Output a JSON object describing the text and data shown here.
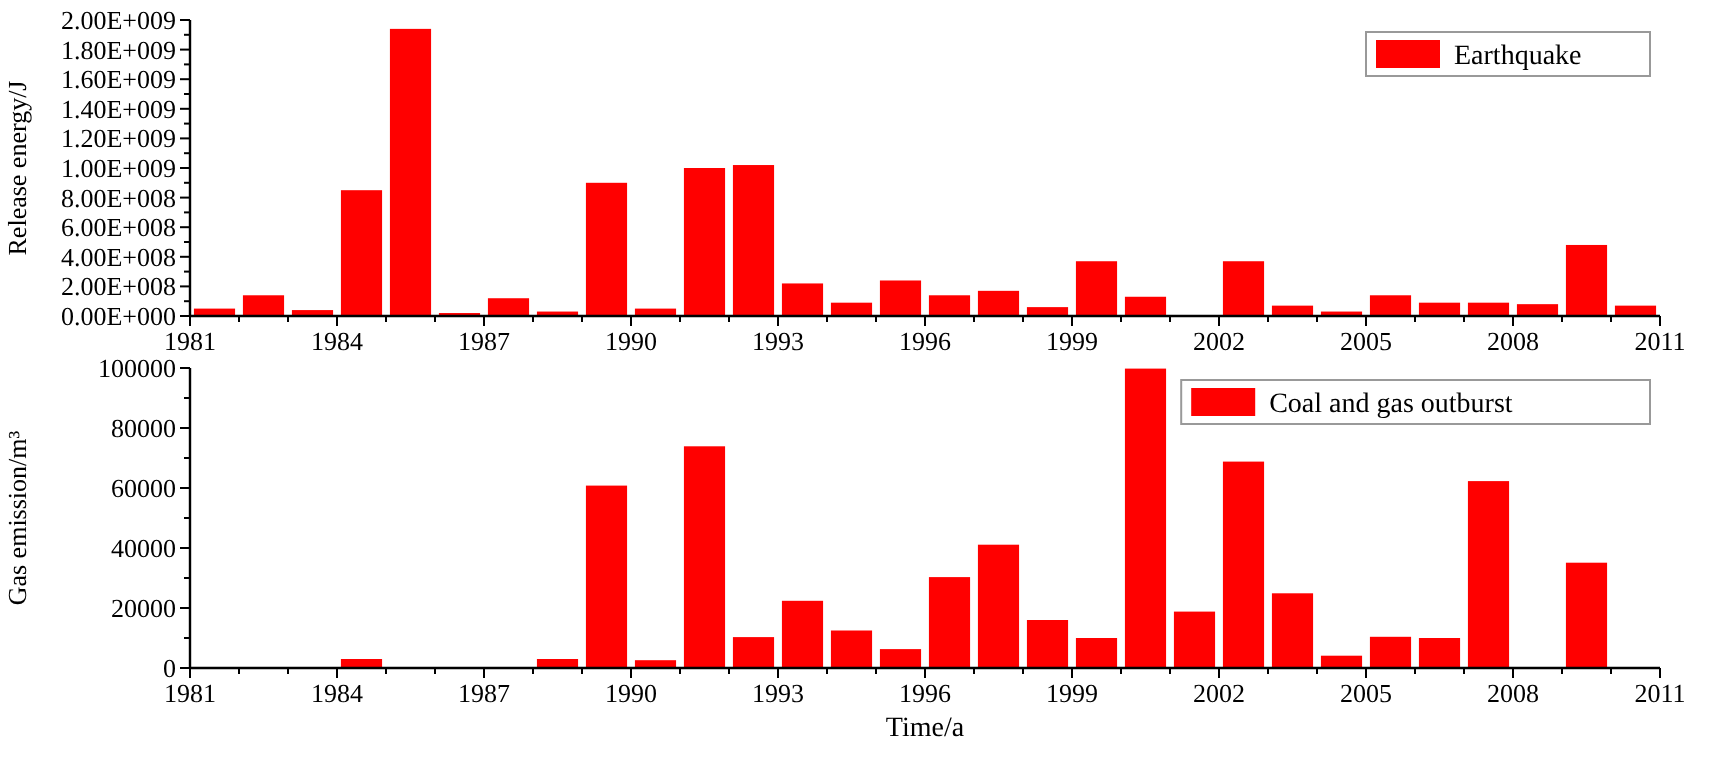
{
  "chart_data": [
    {
      "type": "bar",
      "ylabel": "Release energy/J",
      "x": [
        1981.5,
        1982.5,
        1983.5,
        1984.5,
        1985.5,
        1986.5,
        1987.5,
        1988.5,
        1989.5,
        1990.5,
        1991.5,
        1992.5,
        1993.5,
        1994.5,
        1995.5,
        1996.5,
        1997.5,
        1998.5,
        1999.5,
        2000.5,
        2001.5,
        2002.5,
        2003.5,
        2004.5,
        2005.5,
        2006.5,
        2007.5,
        2008.5,
        2009.5,
        2010.5
      ],
      "series": [
        {
          "name": "Earthquake",
          "color": "#ff0000",
          "values": [
            50000000,
            140000000,
            40000000,
            850000000,
            1940000000,
            20000000,
            120000000,
            30000000,
            900000000,
            50000000,
            1000000000,
            1020000000,
            220000000,
            90000000,
            240000000,
            140000000,
            170000000,
            60000000,
            370000000,
            130000000,
            0,
            370000000,
            70000000,
            30000000,
            140000000,
            90000000,
            90000000,
            80000000,
            480000000,
            70000000
          ]
        }
      ],
      "xlim": [
        1981,
        2011
      ],
      "xticks": [
        1981,
        {
          "value": 1982,
          "label": null
        },
        {
          "value": 1983,
          "label": null
        },
        1984,
        {
          "value": 1985,
          "label": null
        },
        {
          "value": 1986,
          "label": null
        },
        1987,
        {
          "value": 1988,
          "label": null
        },
        {
          "value": 1989,
          "label": null
        },
        1990,
        {
          "value": 1991,
          "label": null
        },
        {
          "value": 1992,
          "label": null
        },
        1993,
        {
          "value": 1994,
          "label": null
        },
        {
          "value": 1995,
          "label": null
        },
        1996,
        {
          "value": 1997,
          "label": null
        },
        {
          "value": 1998,
          "label": null
        },
        1999,
        {
          "value": 2000,
          "label": null
        },
        {
          "value": 2001,
          "label": null
        },
        2002,
        {
          "value": 2003,
          "label": null
        },
        {
          "value": 2004,
          "label": null
        },
        2005,
        {
          "value": 2006,
          "label": null
        },
        {
          "value": 2007,
          "label": null
        },
        2008,
        {
          "value": 2009,
          "label": null
        },
        {
          "value": 2010,
          "label": null
        },
        2011
      ],
      "ylim": [
        0,
        2000000000
      ],
      "yticks": [
        {
          "value": 0,
          "label": "0.00E+000"
        },
        {
          "value": 100000000,
          "label": null
        },
        {
          "value": 200000000,
          "label": "2.00E+008"
        },
        {
          "value": 300000000,
          "label": null
        },
        {
          "value": 400000000,
          "label": "4.00E+008"
        },
        {
          "value": 500000000,
          "label": null
        },
        {
          "value": 600000000,
          "label": "6.00E+008"
        },
        {
          "value": 700000000,
          "label": null
        },
        {
          "value": 800000000,
          "label": "8.00E+008"
        },
        {
          "value": 900000000,
          "label": null
        },
        {
          "value": 1000000000,
          "label": "1.00E+009"
        },
        {
          "value": 1100000000,
          "label": null
        },
        {
          "value": 1200000000,
          "label": "1.20E+009"
        },
        {
          "value": 1300000000,
          "label": null
        },
        {
          "value": 1400000000,
          "label": "1.40E+009"
        },
        {
          "value": 1500000000,
          "label": null
        },
        {
          "value": 1600000000,
          "label": "1.60E+009"
        },
        {
          "value": 1700000000,
          "label": null
        },
        {
          "value": 1800000000,
          "label": "1.80E+009"
        },
        {
          "value": 1900000000,
          "label": null
        },
        {
          "value": 2000000000,
          "label": "2.00E+009"
        }
      ],
      "legend": "top right",
      "grid": false
    },
    {
      "type": "bar",
      "xlabel": "Time/a",
      "ylabel": "Gas emission/m³",
      "x": [
        1981.5,
        1982.5,
        1983.5,
        1984.5,
        1985.5,
        1986.5,
        1987.5,
        1988.5,
        1989.5,
        1990.5,
        1991.5,
        1992.5,
        1993.5,
        1994.5,
        1995.5,
        1996.5,
        1997.5,
        1998.5,
        1999.5,
        2000.5,
        2001.5,
        2002.5,
        2003.5,
        2004.5,
        2005.5,
        2006.5,
        2007.5,
        2008.5,
        2009.5,
        2010.5
      ],
      "series": [
        {
          "name": "Coal and gas outburst",
          "color": "#ff0000",
          "values": [
            0,
            0,
            0,
            3000,
            0,
            0,
            0,
            3000,
            60800,
            2600,
            73900,
            10300,
            22400,
            12500,
            6300,
            30300,
            41100,
            16000,
            10000,
            99800,
            18800,
            68800,
            24900,
            4100,
            10400,
            10000,
            62300,
            0,
            35100,
            0
          ]
        }
      ],
      "xlim": [
        1981,
        2011
      ],
      "xticks": [
        1981,
        {
          "value": 1982,
          "label": null
        },
        {
          "value": 1983,
          "label": null
        },
        1984,
        {
          "value": 1985,
          "label": null
        },
        {
          "value": 1986,
          "label": null
        },
        1987,
        {
          "value": 1988,
          "label": null
        },
        {
          "value": 1989,
          "label": null
        },
        1990,
        {
          "value": 1991,
          "label": null
        },
        {
          "value": 1992,
          "label": null
        },
        1993,
        {
          "value": 1994,
          "label": null
        },
        {
          "value": 1995,
          "label": null
        },
        1996,
        {
          "value": 1997,
          "label": null
        },
        {
          "value": 1998,
          "label": null
        },
        1999,
        {
          "value": 2000,
          "label": null
        },
        {
          "value": 2001,
          "label": null
        },
        2002,
        {
          "value": 2003,
          "label": null
        },
        {
          "value": 2004,
          "label": null
        },
        2005,
        {
          "value": 2006,
          "label": null
        },
        {
          "value": 2007,
          "label": null
        },
        2008,
        {
          "value": 2009,
          "label": null
        },
        {
          "value": 2010,
          "label": null
        },
        2011
      ],
      "ylim": [
        0,
        100000
      ],
      "yticks": [
        0,
        {
          "value": 10000,
          "label": null
        },
        20000,
        {
          "value": 30000,
          "label": null
        },
        40000,
        {
          "value": 50000,
          "label": null
        },
        60000,
        {
          "value": 70000,
          "label": null
        },
        80000,
        {
          "value": 90000,
          "label": null
        },
        100000
      ],
      "legend": "top right",
      "grid": false
    }
  ]
}
